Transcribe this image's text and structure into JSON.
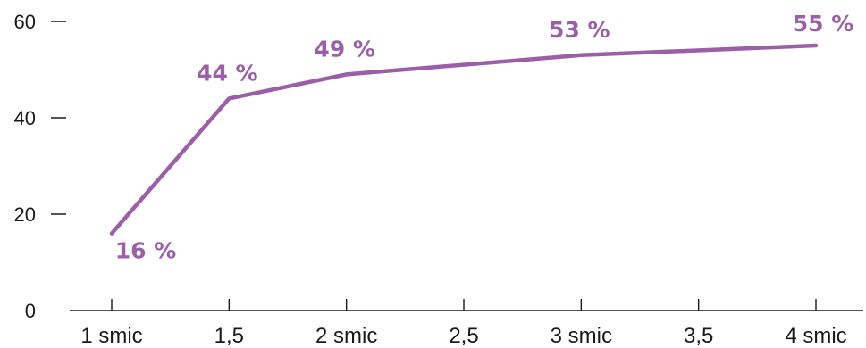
{
  "chart_data": {
    "type": "line",
    "title": "",
    "xlabel": "",
    "ylabel": "",
    "x": [
      1,
      1.5,
      2,
      2.5,
      3,
      3.5,
      4
    ],
    "x_tick_labels": [
      "1 smic",
      "1,5",
      "2 smic",
      "2,5",
      "3 smic",
      "3,5",
      "4 smic"
    ],
    "ylim": [
      0,
      60
    ],
    "y_ticks": [
      0,
      20,
      40,
      60
    ],
    "grid": false,
    "legend": "none",
    "color": "#9b5fa8",
    "series": [
      {
        "x": [
          1,
          1.5,
          2,
          3,
          4
        ],
        "values": [
          16,
          44,
          49,
          53,
          55
        ],
        "labels": [
          "16 %",
          "44 %",
          "49 %",
          "53 %",
          "55 %"
        ]
      }
    ]
  }
}
